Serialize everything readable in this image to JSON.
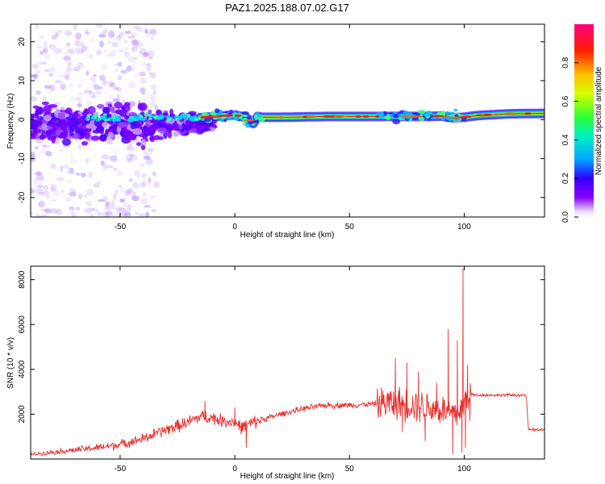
{
  "title": "PAZ1.2025.188.07.02.G17",
  "chart_data": [
    {
      "type": "heatmap",
      "xlabel": "Height of straight line (km)",
      "ylabel": "Frequency (Hz)",
      "xlim": [
        -89,
        135
      ],
      "ylim": [
        -25,
        24.5
      ],
      "xticks": [
        -50,
        0,
        50,
        100
      ],
      "xtick_labels": [
        "-50",
        "0",
        "50",
        "100"
      ],
      "yticks": [
        -20,
        -10,
        0,
        10,
        20
      ],
      "ytick_labels": [
        "-20",
        "-10",
        "0",
        "10",
        "20"
      ],
      "colorbar": {
        "label": "Normalized spectral amplitude",
        "range": [
          0,
          1
        ],
        "ticks": [
          0.0,
          0.2,
          0.4,
          0.6,
          0.8
        ],
        "tick_labels": [
          "0.0",
          "0.2",
          "0.4",
          "0.6",
          "0.8"
        ],
        "colormap": "rainbow"
      },
      "ridge": {
        "x": [
          -15,
          0,
          5,
          8,
          10,
          12,
          20,
          30,
          40,
          50,
          60,
          70,
          80,
          90,
          95,
          100,
          105,
          110,
          120,
          135
        ],
        "y": [
          0.5,
          1.2,
          0.5,
          -1.0,
          0.8,
          0.6,
          0.6,
          0.7,
          0.8,
          0.8,
          0.8,
          0.8,
          0.8,
          0.9,
          0.5,
          0.6,
          1.0,
          1.2,
          1.5,
          1.6
        ]
      }
    },
    {
      "type": "line",
      "xlabel": "Height of straight line (km)",
      "ylabel": "SNR (10 * v/v)",
      "xlim": [
        -89,
        135
      ],
      "ylim": [
        0,
        8600
      ],
      "xticks": [
        -50,
        0,
        50,
        100
      ],
      "xtick_labels": [
        "-50",
        "0",
        "50",
        "100"
      ],
      "yticks": [
        2000,
        4000,
        6000,
        8000
      ],
      "ytick_labels": [
        "2000",
        "4000",
        "6000",
        "8000"
      ],
      "line_color": "#e8302e",
      "series": [
        {
          "x": [
            -89,
            -80,
            -70,
            -60,
            -50,
            -40,
            -30,
            -20,
            -15,
            -10,
            -5,
            0,
            3,
            5,
            10,
            20,
            30,
            40,
            50,
            60,
            65,
            70,
            75,
            80,
            85,
            90,
            95,
            97,
            100,
            102,
            105,
            110,
            120,
            127,
            128,
            135
          ],
          "values": [
            200,
            300,
            400,
            500,
            650,
            900,
            1300,
            1650,
            1900,
            1850,
            1700,
            1650,
            1400,
            1500,
            1700,
            2000,
            2250,
            2400,
            2400,
            2450,
            2500,
            2500,
            2450,
            2400,
            2300,
            2200,
            2000,
            2000,
            2500,
            2900,
            2850,
            2850,
            2850,
            2850,
            1300,
            1300
          ]
        }
      ],
      "spikes": [
        {
          "x": -13,
          "y": 2600
        },
        {
          "x": 0,
          "y": 2300
        },
        {
          "x": 5,
          "y": 500
        },
        {
          "x": 70,
          "y": 4500
        },
        {
          "x": 73,
          "y": 1200
        },
        {
          "x": 75,
          "y": 4300
        },
        {
          "x": 80,
          "y": 3900
        },
        {
          "x": 83,
          "y": 800
        },
        {
          "x": 88,
          "y": 3400
        },
        {
          "x": 93,
          "y": 5800
        },
        {
          "x": 95,
          "y": 200
        },
        {
          "x": 97,
          "y": 5300
        },
        {
          "x": 99,
          "y": 300
        },
        {
          "x": 99.5,
          "y": 8500
        },
        {
          "x": 100.5,
          "y": 500
        },
        {
          "x": 101.5,
          "y": 4200
        },
        {
          "x": 102.5,
          "y": 1700
        }
      ]
    }
  ]
}
